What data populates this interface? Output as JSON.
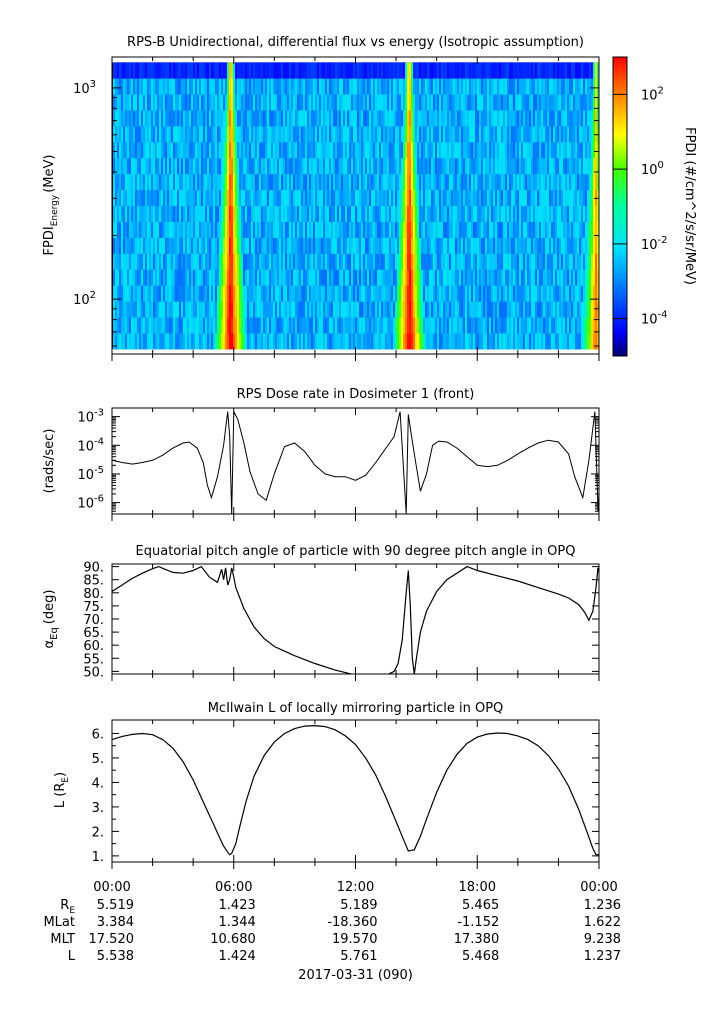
{
  "chart_data": [
    {
      "type": "heatmap",
      "title": "RPS-B  Unidirectional, differential flux vs energy (Isotropic assumption)",
      "ylabel_main": "FPDI",
      "ylabel_sub": "Energy",
      "ylabel_unit": "(MeV)",
      "yscale": "log",
      "ylim": [
        55,
        1400
      ],
      "yticks": [
        {
          "value": 100,
          "label": "10",
          "exp": "2"
        },
        {
          "value": 1000,
          "label": "10",
          "exp": "3"
        }
      ],
      "xlim_hours": [
        0,
        24
      ],
      "colorbar": {
        "label": "FPDI (#/cm^2/s/sr/MeV)",
        "scale": "log",
        "range": [
          1e-05,
          1000
        ],
        "ticks": [
          {
            "value": 0.0001,
            "label": "10",
            "exp": "-4"
          },
          {
            "value": 0.01,
            "label": "10",
            "exp": "-2"
          },
          {
            "value": 1,
            "label": "10",
            "exp": "0"
          },
          {
            "value": 100,
            "label": "10",
            "exp": "2"
          }
        ]
      },
      "flux_peaks": [
        {
          "hour": 5.8,
          "level": 3.0
        },
        {
          "hour": 14.6,
          "level": 3.0
        },
        {
          "hour": 23.8,
          "level": 2.0
        }
      ]
    },
    {
      "type": "line",
      "title": "RPS  Dose rate in Dosimeter 1 (front)",
      "ylabel": "(rads/sec)",
      "yscale": "log",
      "ylim": [
        4e-07,
        0.002
      ],
      "yticks": [
        {
          "value": 1e-06,
          "label": "10",
          "exp": "-6"
        },
        {
          "value": 1e-05,
          "label": "10",
          "exp": "-5"
        },
        {
          "value": 0.0001,
          "label": "10",
          "exp": "-4"
        },
        {
          "value": 0.001,
          "label": "10",
          "exp": "-3"
        }
      ],
      "series": [
        {
          "x": [
            0,
            0.5,
            1,
            1.5,
            2,
            2.5,
            3,
            3.5,
            3.8,
            4.2,
            4.5,
            4.7,
            4.9,
            5.2,
            5.5,
            5.7,
            5.8,
            5.9,
            6.0,
            6.2,
            6.5,
            6.8,
            7.2,
            7.6,
            8.0,
            8.5,
            9.0,
            9.5,
            10.0,
            10.5,
            11.0,
            11.5,
            12.0,
            12.5,
            13.0,
            13.5,
            13.9,
            14.2,
            14.5,
            14.6,
            14.7,
            14.9,
            15.2,
            15.5,
            15.8,
            16.1,
            16.5,
            17.0,
            17.5,
            18.0,
            18.5,
            19.0,
            19.5,
            20.0,
            20.5,
            21.0,
            21.5,
            22.0,
            22.5,
            22.8,
            23.2,
            23.5,
            23.8,
            23.95,
            24.0
          ],
          "y": [
            3e-05,
            2.5e-05,
            2.2e-05,
            2.5e-05,
            3e-05,
            4.5e-05,
            8e-05,
            0.00012,
            0.00013,
            8e-05,
            2.5e-05,
            4e-06,
            1.5e-06,
            8e-06,
            0.0001,
            0.0015,
            0.0002,
            4e-07,
            0.0015,
            0.0008,
            0.00012,
            1.2e-05,
            2e-06,
            1.2e-06,
            1e-05,
            9e-05,
            0.00012,
            6e-05,
            2e-05,
            1e-05,
            8e-06,
            8e-06,
            6e-06,
            9e-06,
            2.5e-05,
            8e-05,
            0.0002,
            0.0015,
            4e-07,
            0.0012,
            0.0004,
            5e-05,
            2.5e-06,
            1e-05,
            0.0001,
            0.00014,
            0.00013,
            8e-05,
            4e-05,
            2e-05,
            1.8e-05,
            2e-05,
            3e-05,
            5e-05,
            8e-05,
            0.00012,
            0.00015,
            0.00013,
            5e-05,
            8e-06,
            1.5e-06,
            3e-05,
            0.0015,
            5e-07,
            2e-06
          ]
        }
      ]
    },
    {
      "type": "line",
      "title": "Equatorial pitch angle of particle with 90 degree pitch angle in OPQ",
      "ylabel_main": "α",
      "ylabel_sub": "Eq",
      "ylabel_unit": "(deg)",
      "ylim": [
        49,
        91
      ],
      "yticks": [
        50,
        55,
        60,
        65,
        70,
        75,
        80,
        85,
        90
      ],
      "ytick_labels": [
        "50.",
        "55.",
        "60.",
        "65.",
        "70.",
        "75.",
        "80.",
        "85.",
        "90."
      ],
      "series": [
        {
          "x": [
            0,
            0.5,
            1.0,
            1.5,
            2.0,
            2.3,
            2.6,
            3.0,
            3.5,
            4.0,
            4.4,
            4.8,
            5.2,
            5.4,
            5.5,
            5.6,
            5.7,
            5.8,
            5.9,
            6.0,
            6.1,
            6.5,
            7.0,
            7.5,
            8.0,
            9.0,
            10.0,
            11.0,
            11.8,
            12.0,
            13.0,
            13.5,
            13.9,
            14.1,
            14.3,
            14.5,
            14.6,
            14.7,
            14.8,
            14.9,
            15.0,
            15.2,
            15.5,
            16.0,
            16.5,
            16.9,
            17.5,
            18.0,
            19.0,
            20.0,
            21.0,
            22.0,
            22.5,
            23.0,
            23.3,
            23.5,
            23.7,
            23.85,
            23.95,
            24.0
          ],
          "y": [
            80.5,
            83.0,
            85.5,
            87.5,
            89.2,
            90.0,
            89.0,
            87.8,
            87.5,
            88.5,
            90.0,
            86.0,
            84.0,
            89.0,
            85.0,
            89.5,
            83.0,
            85.0,
            89.5,
            86.0,
            82.0,
            74.0,
            67.0,
            62.5,
            59.5,
            56.0,
            53.0,
            50.5,
            49.0,
            48.0,
            47.0,
            48.5,
            50.0,
            53.0,
            62.0,
            80.0,
            88.5,
            75.0,
            55.0,
            49.0,
            55.0,
            65.0,
            73.0,
            80.5,
            85.0,
            87.0,
            90.0,
            88.5,
            86.5,
            84.5,
            82.0,
            79.5,
            78.0,
            75.5,
            72.5,
            69.5,
            73.0,
            82.0,
            89.5,
            88.0
          ]
        }
      ]
    },
    {
      "type": "line",
      "title": "McIlwain L of locally mirroring particle in OPQ",
      "ylabel_main": "L (R",
      "ylabel_sub": "E",
      "ylabel_unit": ")",
      "ylim": [
        0.75,
        6.55
      ],
      "yticks": [
        1,
        2,
        3,
        4,
        5,
        6
      ],
      "ytick_labels": [
        "1.",
        "2.",
        "3.",
        "4.",
        "5.",
        "6."
      ],
      "series": [
        {
          "x": [
            0,
            0.5,
            1.0,
            1.5,
            2.0,
            2.5,
            3.0,
            3.5,
            4.0,
            4.5,
            5.0,
            5.3,
            5.5,
            5.7,
            5.8,
            5.9,
            6.1,
            6.3,
            6.6,
            7.0,
            7.5,
            8.0,
            8.5,
            9.0,
            9.5,
            10.0,
            10.5,
            11.0,
            11.5,
            12.0,
            12.5,
            13.0,
            13.5,
            14.0,
            14.3,
            14.6,
            14.9,
            15.2,
            15.5,
            16.0,
            16.5,
            17.0,
            17.5,
            18.0,
            18.5,
            19.0,
            19.5,
            20.0,
            20.5,
            21.0,
            21.5,
            22.0,
            22.5,
            23.0,
            23.4,
            23.7,
            23.85,
            24.0
          ],
          "y": [
            5.75,
            5.88,
            5.96,
            6.0,
            5.95,
            5.75,
            5.4,
            4.85,
            4.1,
            3.2,
            2.3,
            1.75,
            1.4,
            1.15,
            1.05,
            1.1,
            1.5,
            2.2,
            3.2,
            4.25,
            5.1,
            5.65,
            6.0,
            6.2,
            6.3,
            6.32,
            6.28,
            6.15,
            5.9,
            5.55,
            5.0,
            4.3,
            3.4,
            2.4,
            1.8,
            1.2,
            1.25,
            1.8,
            2.5,
            3.6,
            4.5,
            5.15,
            5.6,
            5.85,
            5.98,
            6.02,
            6.0,
            5.9,
            5.75,
            5.5,
            5.1,
            4.55,
            3.85,
            2.9,
            2.0,
            1.3,
            1.05,
            1.05
          ]
        }
      ]
    }
  ],
  "xaxis": {
    "ticks": [
      "00:00",
      "06:00",
      "12:00",
      "18:00",
      "00:00"
    ],
    "date_label": "2017-03-31 (090)",
    "rows": [
      {
        "name": "R",
        "sub": "E",
        "values": [
          "5.519",
          "1.423",
          "5.189",
          "5.465",
          "1.236"
        ]
      },
      {
        "name": "MLat",
        "sub": "",
        "values": [
          "3.384",
          "1.344",
          "-18.360",
          "-1.152",
          "1.622"
        ]
      },
      {
        "name": "MLT",
        "sub": "",
        "values": [
          "17.520",
          "10.680",
          "19.570",
          "17.380",
          "9.238"
        ]
      },
      {
        "name": "L",
        "sub": "",
        "values": [
          "5.538",
          "1.424",
          "5.761",
          "5.468",
          "1.237"
        ]
      }
    ]
  }
}
